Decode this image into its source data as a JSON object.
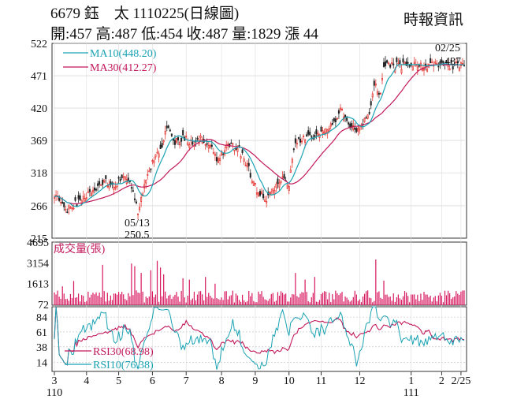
{
  "header": {
    "line1": "6679 鈺　太 1110225(日線圖)",
    "line2": "開:457 高:487 低:454 收:487 量:1829 漲 44",
    "source": "時報資訊"
  },
  "colors": {
    "up_candle": "#e53935",
    "down_candle": "#222222",
    "ma10": "#1aa3b3",
    "ma30": "#c2185b",
    "volume": "#d81b60",
    "rsi30": "#c2185b",
    "rsi10": "#1aa3b3",
    "frame": "#333333"
  },
  "chart_data": {
    "type": "candlestick",
    "price": {
      "yticks": [
        215,
        266,
        318,
        369,
        420,
        471,
        522
      ],
      "ylim": [
        215,
        522
      ],
      "legend": [
        {
          "name": "MA10(448.20)",
          "color": "#1aa3b3"
        },
        {
          "name": "MA30(412.27)",
          "color": "#c2185b"
        }
      ],
      "annotations": [
        {
          "label": "05/13",
          "value": "250.5"
        },
        {
          "label": "02/25",
          "value": "487"
        }
      ],
      "anchors": [
        {
          "day": 0,
          "close": 285
        },
        {
          "day": 8,
          "close": 262
        },
        {
          "day": 20,
          "close": 280
        },
        {
          "day": 30,
          "close": 305
        },
        {
          "day": 38,
          "close": 300
        },
        {
          "day": 44,
          "close": 312
        },
        {
          "day": 48,
          "close": 295
        },
        {
          "day": 52,
          "close": 258
        },
        {
          "day": 56,
          "close": 300
        },
        {
          "day": 61,
          "close": 335
        },
        {
          "day": 66,
          "close": 355
        },
        {
          "day": 70,
          "close": 392
        },
        {
          "day": 75,
          "close": 368
        },
        {
          "day": 80,
          "close": 372
        },
        {
          "day": 86,
          "close": 366
        },
        {
          "day": 92,
          "close": 372
        },
        {
          "day": 97,
          "close": 362
        },
        {
          "day": 101,
          "close": 340
        },
        {
          "day": 108,
          "close": 362
        },
        {
          "day": 114,
          "close": 358
        },
        {
          "day": 120,
          "close": 330
        },
        {
          "day": 126,
          "close": 290
        },
        {
          "day": 132,
          "close": 278
        },
        {
          "day": 137,
          "close": 292
        },
        {
          "day": 142,
          "close": 312
        },
        {
          "day": 146,
          "close": 300
        },
        {
          "day": 150,
          "close": 368
        },
        {
          "day": 156,
          "close": 372
        },
        {
          "day": 162,
          "close": 378
        },
        {
          "day": 168,
          "close": 385
        },
        {
          "day": 174,
          "close": 398
        },
        {
          "day": 178,
          "close": 418
        },
        {
          "day": 182,
          "close": 395
        },
        {
          "day": 188,
          "close": 382
        },
        {
          "day": 192,
          "close": 400
        },
        {
          "day": 196,
          "close": 415
        },
        {
          "day": 199,
          "close": 460
        },
        {
          "day": 203,
          "close": 443
        },
        {
          "day": 205,
          "close": 487
        }
      ]
    },
    "volume": {
      "label": "成交量(張)",
      "yticks": [
        72,
        1613,
        3154,
        4695
      ],
      "ylim": [
        0,
        4695
      ],
      "spikes": [
        {
          "day": 5,
          "value": 1400
        },
        {
          "day": 12,
          "value": 1800
        },
        {
          "day": 30,
          "value": 3000
        },
        {
          "day": 48,
          "value": 3100
        },
        {
          "day": 50,
          "value": 2900
        },
        {
          "day": 54,
          "value": 2400
        },
        {
          "day": 60,
          "value": 2600
        },
        {
          "day": 64,
          "value": 3300
        },
        {
          "day": 66,
          "value": 2800
        },
        {
          "day": 68,
          "value": 2300
        },
        {
          "day": 80,
          "value": 2000
        },
        {
          "day": 84,
          "value": 1900
        },
        {
          "day": 94,
          "value": 2100
        },
        {
          "day": 100,
          "value": 1600
        },
        {
          "day": 150,
          "value": 2400
        },
        {
          "day": 156,
          "value": 1900
        },
        {
          "day": 162,
          "value": 2100
        },
        {
          "day": 200,
          "value": 3400
        },
        {
          "day": 205,
          "value": 1829
        }
      ]
    },
    "rsi": {
      "yticks": [
        14,
        38,
        61,
        84
      ],
      "ylim": [
        0,
        100
      ],
      "series": [
        {
          "name": "RSI30(68.98)",
          "color": "#c2185b"
        },
        {
          "name": "RSI10(76.38)",
          "color": "#1aa3b3"
        }
      ]
    },
    "xaxis": {
      "months": [
        {
          "label": "3",
          "day": 0
        },
        {
          "label": "4",
          "day": 20
        },
        {
          "label": "5",
          "day": 40
        },
        {
          "label": "6",
          "day": 61
        },
        {
          "label": "7",
          "day": 82
        },
        {
          "label": "8",
          "day": 104
        },
        {
          "label": "9",
          "day": 125
        },
        {
          "label": "10",
          "day": 146
        },
        {
          "label": "11",
          "day": 166
        },
        {
          "label": "12",
          "day": 190
        },
        {
          "label": "1",
          "day": 222
        },
        {
          "label": "2",
          "day": 241
        },
        {
          "label": "2/25",
          "day": 253
        }
      ],
      "years": [
        {
          "label": "110",
          "day": 0
        },
        {
          "label": "111",
          "day": 222
        }
      ]
    }
  }
}
